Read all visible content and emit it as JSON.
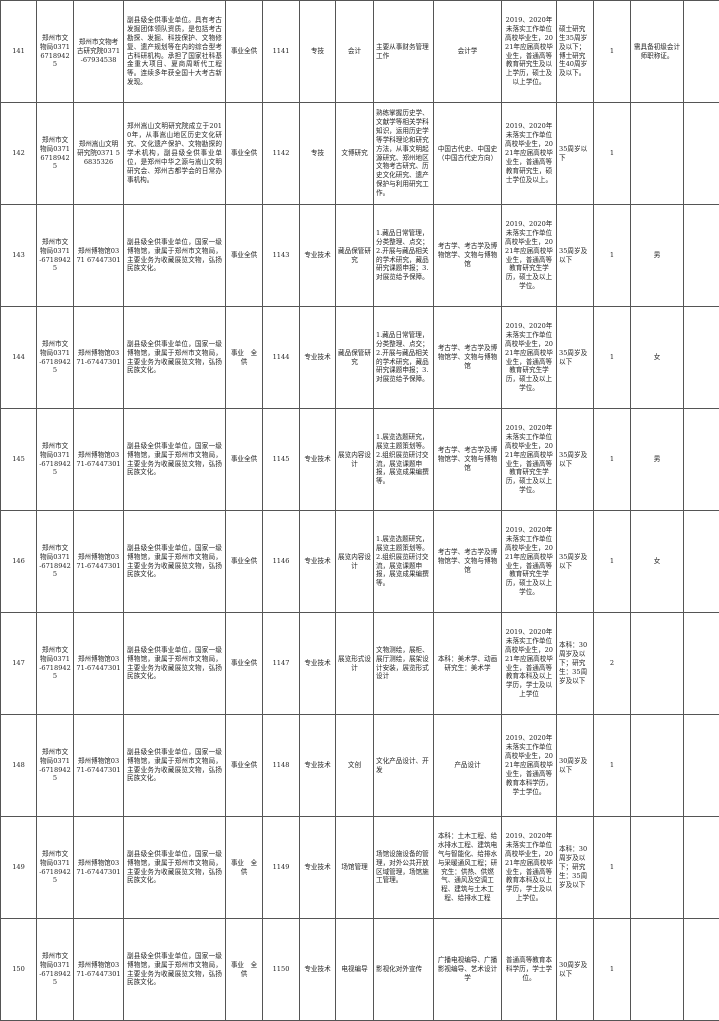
{
  "rows": [
    {
      "no": "141",
      "dept": "郑州市文物局0371 67189425",
      "unit": "郑州市文物考古研究院0371-67934538",
      "intro": "副县级全供事业单位。具有考古发掘团体领队资质，是包括考古勘探、发掘、科技保护、文物修复、遗产规划等在内的综合型考古科研机构。承担了国家社科基金重大项目、夏商周断代工程等。连续多年获全国十大考古新发现。",
      "funding": "事业全供",
      "code": "1141",
      "category": "专技",
      "position": "会计",
      "duties": "主要从事财务管理工作",
      "major": "会计学",
      "education": "2019、2020年未落实工作单位高校毕业生，2021年应届高校毕业生，普通高等教育研究生及以上学历，硕士及以上学位。",
      "age": "硕士研究生35周岁及以下；博士研究生40周岁及以下。",
      "count": "1",
      "other": "需具备初级会计师职称证。",
      "remark": ""
    },
    {
      "no": "142",
      "dept": "郑州市文物局0371 67189425",
      "unit": "郑州嵩山文明研究院0371 56835326",
      "intro": "郑州嵩山文明研究院成立于2010年，从事嵩山地区历史文化研究、文化遗产保护、文物勘探的学术机构，副县级全供事业单位，是郑州中华之源与嵩山文明研究会、郑州古都学会的日常办事机构。",
      "funding": "事业全供",
      "code": "1142",
      "category": "专技",
      "position": "文博研究",
      "duties": "熟练掌握历史学、文献学等相关学科知识，运用历史学等学科理论和研究方法，从事文明起源研究、郑州地区文物考古研究、历史文化研究、遗产保护与利用研究工作。",
      "major": "中国古代史、中国史（中国古代史方向）",
      "education": "2019、2020年未落实工作单位高校毕业生，2021年应届高校毕业生，普通高等教育研究生，硕士学位及以上。",
      "age": "35周岁以下",
      "count": "1",
      "other": "",
      "remark": ""
    },
    {
      "no": "143",
      "dept": "郑州市文物局0371-67189425",
      "unit": "郑州博物馆0371 67447301",
      "intro": "副县级全供事业单位，国家一级博物馆，隶属于郑州市文物局，主要业务为收藏展览文物，弘扬民族文化。",
      "funding": "事业全供",
      "code": "1143",
      "category": "专业技术",
      "position": "藏品保管研究",
      "duties": "1.藏品日常管理，分类整理、点交；2.开展与藏品相关的学术研究，藏品研究课题申报；3.对展览给予保障。",
      "major": "考古学、考古学及博物馆学、文物与博物馆",
      "education": "2019、2020年未落实工作单位高校毕业生，2021年应届高校毕业生，普通高等教育研究生学历，硕士及以上学位。",
      "age": "35周岁及以下",
      "count": "1",
      "other": "男",
      "remark": ""
    },
    {
      "no": "144",
      "dept": "郑州市文物局0371-67189425",
      "unit": "郑州博物馆0371-67447301",
      "intro": "副县级全供事业单位，国家一级博物馆，隶属于郑州市文物局，主要业务为收藏展览文物，弘扬民族文化。",
      "funding": "事业　全供",
      "code": "1144",
      "category": "专业技术",
      "position": "藏品保管研究",
      "duties": "1.藏品日常管理，分类整理、点交；2.开展与藏品相关的学术研究，藏品研究课题申报；3.对展览给予保障。",
      "major": "考古学、考古学及博物馆学、文物与博物馆",
      "education": "2019、2020年未落实工作单位高校毕业生，2021年应届高校毕业生，普通高等教育研究生学历，硕士及以上学位。",
      "age": "35周岁及以下",
      "count": "1",
      "other": "女",
      "remark": ""
    },
    {
      "no": "145",
      "dept": "郑州市文物局0371-67189425",
      "unit": "郑州博物馆0371-67447301",
      "intro": "副县级全供事业单位，国家一级博物馆，隶属于郑州市文物局，主要业务为收藏展览文物，弘扬民族文化。",
      "funding": "事业全供",
      "code": "1145",
      "category": "专业技术",
      "position": "展览内容设计",
      "duties": "1.展览选题研究，展览主题策划等。2.组织展览研讨交流，展览课题申报，展览成果编撰等。",
      "major": "考古学、考古学及博物馆学、文物与博物馆",
      "education": "2019、2020年未落实工作单位高校毕业生，2021年应届高校毕业生，普通高等教育研究生学历，硕士及以上学位。",
      "age": "35周岁及以下",
      "count": "1",
      "other": "男",
      "remark": ""
    },
    {
      "no": "146",
      "dept": "郑州市文物局0371-67189425",
      "unit": "郑州博物馆0371-67447301",
      "intro": "副县级全供事业单位，国家一级博物馆，隶属于郑州市文物局，主要业务为收藏展览文物，弘扬民族文化。",
      "funding": "事业全供",
      "code": "1146",
      "category": "专业技术",
      "position": "展览内容设计",
      "duties": "1.展览选题研究，展览主题策划等。2.组织展览研讨交流，展览课题申报，展览成果编撰等。",
      "major": "考古学、考古学及博物馆学、文物与博物馆",
      "education": "2019、2020年未落实工作单位高校毕业生，2021年应届高校毕业生，普通高等教育研究生学历，硕士及以上学位。",
      "age": "35周岁及以下",
      "count": "1",
      "other": "女",
      "remark": ""
    },
    {
      "no": "147",
      "dept": "郑州市文物局0371-67189425",
      "unit": "郑州博物馆0371-67447301",
      "intro": "副县级全供事业单位，国家一级博物馆，隶属于郑州市文物局，主要业务为收藏展览文物，弘扬民族文化。",
      "funding": "事业全供",
      "code": "1147",
      "category": "专业技术",
      "position": "展览形式设计",
      "duties": "文物测绘，展柜、展厅测绘，展架设计安装，展览形式设计",
      "major": "本科：美术学、动画 研究生：美术学",
      "education": "2019、2020年未落实工作单位高校毕业生，2021年应届高校毕业生，普通高等教育本科及以上学历，学士及以上学位",
      "age": "本科：30周岁及以下；研究生：35周岁及以下",
      "count": "2",
      "other": "",
      "remark": ""
    },
    {
      "no": "148",
      "dept": "郑州市文物局0371-67189425",
      "unit": "郑州博物馆0371-67447301",
      "intro": "副县级全供事业单位，国家一级博物馆，隶属于郑州市文物局，主要业务为收藏展览文物，弘扬民族文化。",
      "funding": "事业全供",
      "code": "1148",
      "category": "专业技术",
      "position": "文创",
      "duties": "文化产品设计、开发",
      "major": "产品设计",
      "education": "2019、2020年未落实工作单位高校毕业生，2021年应届高校毕业生，普通高等教育本科学历，学士学位。",
      "age": "30周岁及以下",
      "count": "1",
      "other": "",
      "remark": ""
    },
    {
      "no": "149",
      "dept": "郑州市文物局0371-67189425",
      "unit": "郑州博物馆0371-67447301",
      "intro": "副县级全供事业单位，国家一级博物馆，隶属于郑州市文物局，主要业务为收藏展览文物，弘扬民族文化。",
      "funding": "事业　全供",
      "code": "1149",
      "category": "专业技术",
      "position": "场馆管理",
      "duties": "场馆设施设备的管理，对外公共开放区域管理，场馆施工管理。",
      "major": "本科：土木工程、给水排水工程、建筑电气与智能化、给排水与采暖通风工程；研究生：供热、供燃气、通风及空调工程、建筑与土木工程、给排水工程",
      "education": "2019、2020年未落实工作单位高校毕业生，2021年应届高校毕业生，普通高等教育本科及以上学历，学士及以上学位。",
      "age": "本科：30周岁及以下；研究生：35周岁及以下",
      "count": "1",
      "other": "",
      "remark": ""
    },
    {
      "no": "150",
      "dept": "郑州市文物局0371-67189425",
      "unit": "郑州博物馆0371-67447301",
      "intro": "副县级全供事业单位，国家一级博物馆，隶属于郑州市文物局，主要业务为收藏展览文物，弘扬民族文化。",
      "funding": "事业　全供",
      "code": "1150",
      "category": "专业技术",
      "position": "电视编导",
      "duties": "影视化对外宣传",
      "major": "广播电视编导、广播影视编导、艺术设计学",
      "education": "普通高等教育本科学历，学士学位。",
      "age": "30周岁及以下",
      "count": "1",
      "other": "",
      "remark": ""
    }
  ]
}
